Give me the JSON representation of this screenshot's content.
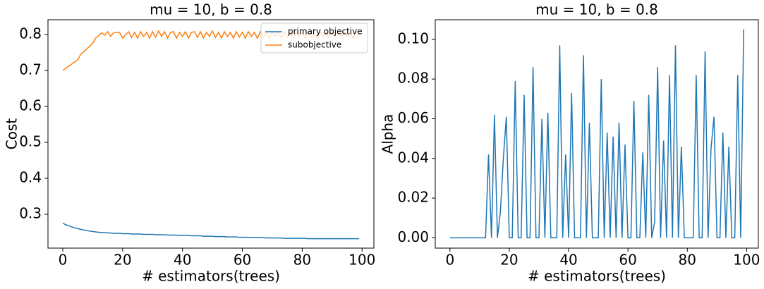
{
  "chart_data": [
    {
      "type": "line",
      "title": "mu = 10, b = 0.8",
      "xlabel": "# estimators(trees)",
      "ylabel": "Cost",
      "xlim": [
        -4.95,
        103.95
      ],
      "ylim": [
        0.2058,
        0.8412
      ],
      "xticks": [
        0,
        20,
        40,
        60,
        80,
        100
      ],
      "yticks": [
        0.3,
        0.4,
        0.5,
        0.6,
        0.7,
        0.8
      ],
      "legend": "upper right",
      "x": [
        0,
        1,
        2,
        3,
        4,
        5,
        6,
        7,
        8,
        9,
        10,
        11,
        12,
        13,
        14,
        15,
        16,
        17,
        18,
        19,
        20,
        21,
        22,
        23,
        24,
        25,
        26,
        27,
        28,
        29,
        30,
        31,
        32,
        33,
        34,
        35,
        36,
        37,
        38,
        39,
        40,
        41,
        42,
        43,
        44,
        45,
        46,
        47,
        48,
        49,
        50,
        51,
        52,
        53,
        54,
        55,
        56,
        57,
        58,
        59,
        60,
        61,
        62,
        63,
        64,
        65,
        66,
        67,
        68,
        69,
        70,
        71,
        72,
        73,
        74,
        75,
        76,
        77,
        78,
        79,
        80,
        81,
        82,
        83,
        84,
        85,
        86,
        87,
        88,
        89,
        90,
        91,
        92,
        93,
        94,
        95,
        96,
        97,
        98,
        99
      ],
      "series": [
        {
          "name": "primary objective",
          "color": "#1f77b4",
          "values": [
            0.275,
            0.271,
            0.268,
            0.265,
            0.262,
            0.26,
            0.258,
            0.256,
            0.255,
            0.253,
            0.252,
            0.251,
            0.25,
            0.249,
            0.249,
            0.248,
            0.248,
            0.247,
            0.247,
            0.247,
            0.246,
            0.246,
            0.246,
            0.245,
            0.245,
            0.245,
            0.245,
            0.244,
            0.244,
            0.244,
            0.244,
            0.243,
            0.243,
            0.243,
            0.243,
            0.242,
            0.242,
            0.242,
            0.242,
            0.241,
            0.241,
            0.241,
            0.241,
            0.24,
            0.24,
            0.24,
            0.24,
            0.239,
            0.239,
            0.239,
            0.239,
            0.238,
            0.238,
            0.238,
            0.238,
            0.237,
            0.237,
            0.237,
            0.237,
            0.236,
            0.236,
            0.236,
            0.236,
            0.235,
            0.235,
            0.235,
            0.235,
            0.235,
            0.234,
            0.234,
            0.234,
            0.234,
            0.234,
            0.234,
            0.233,
            0.233,
            0.233,
            0.233,
            0.233,
            0.233,
            0.233,
            0.233,
            0.232,
            0.232,
            0.232,
            0.232,
            0.232,
            0.232,
            0.232,
            0.232,
            0.232,
            0.232,
            0.232,
            0.232,
            0.232,
            0.232,
            0.232,
            0.232,
            0.232,
            0.232
          ]
        },
        {
          "name": "subobjective",
          "color": "#ff7f0e",
          "values": [
            0.7,
            0.706,
            0.712,
            0.718,
            0.724,
            0.73,
            0.745,
            0.752,
            0.76,
            0.768,
            0.776,
            0.79,
            0.797,
            0.805,
            0.798,
            0.808,
            0.795,
            0.805,
            0.806,
            0.806,
            0.79,
            0.8,
            0.808,
            0.792,
            0.806,
            0.79,
            0.808,
            0.795,
            0.806,
            0.79,
            0.808,
            0.793,
            0.81,
            0.795,
            0.808,
            0.79,
            0.806,
            0.808,
            0.79,
            0.806,
            0.795,
            0.808,
            0.79,
            0.806,
            0.808,
            0.792,
            0.808,
            0.79,
            0.806,
            0.795,
            0.81,
            0.792,
            0.806,
            0.79,
            0.808,
            0.795,
            0.806,
            0.79,
            0.808,
            0.793,
            0.806,
            0.79,
            0.808,
            0.795,
            0.806,
            0.79,
            0.808,
            0.792,
            0.806,
            0.79,
            0.81,
            0.795,
            0.806,
            0.79,
            0.808,
            0.793,
            0.806,
            0.79,
            0.808,
            0.795,
            0.806,
            0.79,
            0.808,
            0.792,
            0.806,
            0.79,
            0.808,
            0.795,
            0.806,
            0.79,
            0.808,
            0.793,
            0.806,
            0.79,
            0.808,
            0.795,
            0.806,
            0.79,
            0.808,
            0.8
          ]
        }
      ]
    },
    {
      "type": "line",
      "title": "mu = 10, b = 0.8",
      "xlabel": "# estimators(trees)",
      "ylabel": "Alpha",
      "xlim": [
        -4.95,
        103.95
      ],
      "ylim": [
        -0.0052,
        0.1099
      ],
      "xticks": [
        0,
        20,
        40,
        60,
        80,
        100
      ],
      "yticks": [
        {
          "value": 0,
          "label": "0.00"
        },
        {
          "value": 0.02,
          "label": "0.02"
        },
        {
          "value": 0.04,
          "label": "0.04"
        },
        {
          "value": 0.06,
          "label": "0.06"
        },
        {
          "value": 0.08,
          "label": "0.08"
        },
        {
          "value": 0.1,
          "label": "0.10"
        }
      ],
      "x": [
        0,
        1,
        2,
        3,
        4,
        5,
        6,
        7,
        8,
        9,
        10,
        11,
        12,
        13,
        14,
        15,
        16,
        17,
        18,
        19,
        20,
        21,
        22,
        23,
        24,
        25,
        26,
        27,
        28,
        29,
        30,
        31,
        32,
        33,
        34,
        35,
        36,
        37,
        38,
        39,
        40,
        41,
        42,
        43,
        44,
        45,
        46,
        47,
        48,
        49,
        50,
        51,
        52,
        53,
        54,
        55,
        56,
        57,
        58,
        59,
        60,
        61,
        62,
        63,
        64,
        65,
        66,
        67,
        68,
        69,
        70,
        71,
        72,
        73,
        74,
        75,
        76,
        77,
        78,
        79,
        80,
        81,
        82,
        83,
        84,
        85,
        86,
        87,
        88,
        89,
        90,
        91,
        92,
        93,
        94,
        95,
        96,
        97,
        98,
        99
      ],
      "series": [
        {
          "color": "#1f77b4",
          "values": [
            0,
            0,
            0,
            0,
            0,
            0,
            0,
            0,
            0,
            0,
            0,
            0,
            0,
            0.042,
            0,
            0.062,
            0,
            0.013,
            0.04,
            0.061,
            0,
            0,
            0.079,
            0,
            0,
            0.072,
            0,
            0,
            0.086,
            0,
            0,
            0.06,
            0,
            0.063,
            0,
            0,
            0,
            0.097,
            0,
            0.042,
            0,
            0.073,
            0,
            0,
            0,
            0.092,
            0,
            0.058,
            0,
            0,
            0,
            0.08,
            0,
            0.053,
            0,
            0.051,
            0,
            0.058,
            0,
            0.047,
            0,
            0,
            0.069,
            0,
            0,
            0.043,
            0,
            0.072,
            0,
            0.008,
            0.086,
            0,
            0.049,
            0,
            0.082,
            0,
            0.097,
            0,
            0.046,
            0,
            0,
            0,
            0,
            0.082,
            0,
            0,
            0.094,
            0,
            0.045,
            0.061,
            0,
            0,
            0.053,
            0,
            0.046,
            0,
            0,
            0.082,
            0,
            0.105
          ]
        }
      ]
    }
  ]
}
